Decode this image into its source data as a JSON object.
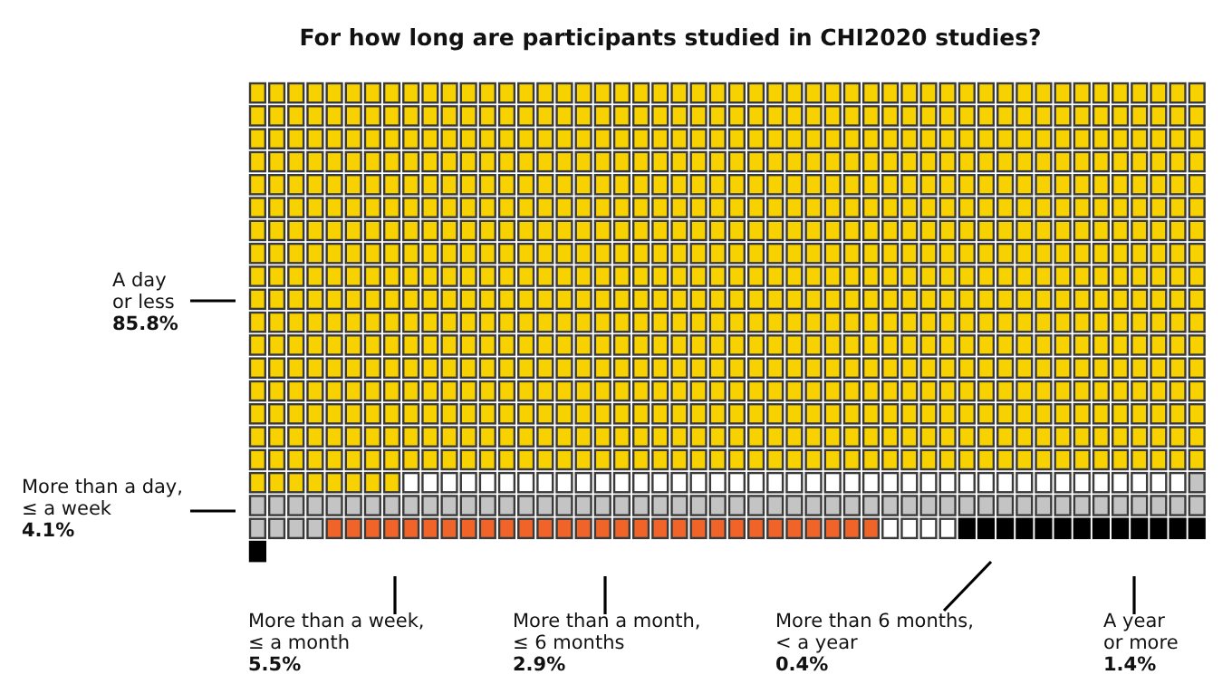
{
  "chart_data": {
    "type": "other",
    "title": "For how long are participants studied in CHI2020 studies?",
    "categories": [
      "A day or less",
      "More than a day, ≤ a week",
      "More than a week, ≤ a month",
      "More than a month, ≤ 6 months",
      "More than 6 months, < a year",
      "A year or more"
    ],
    "values": [
      85.8,
      4.1,
      5.5,
      2.9,
      0.4,
      1.4
    ],
    "value_labels": [
      "85.8%",
      "4.1%",
      "5.5%",
      "2.9%",
      "0.4%",
      "1.4%"
    ],
    "colors": [
      "#f7d200",
      "#ffffff",
      "#c4c4c4",
      "#f0642a",
      "#ffffff",
      "#000000"
    ]
  }
}
